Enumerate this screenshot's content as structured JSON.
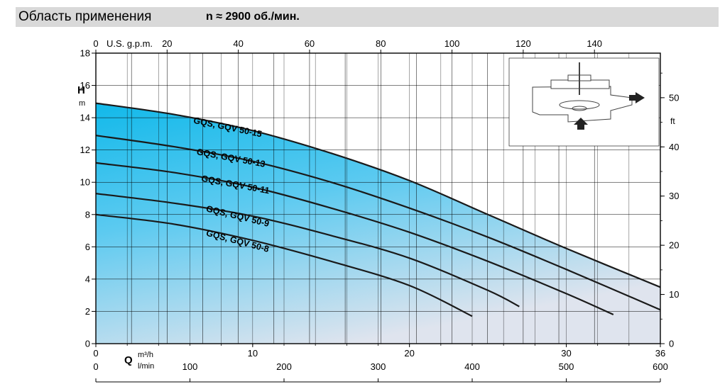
{
  "header": {
    "title": "Область применения",
    "subtitle": "n ≈ 2900 об./мин."
  },
  "chart_data": {
    "type": "area",
    "y_axis_left": {
      "label": "H",
      "unit": "m",
      "ticks": [
        0,
        2,
        4,
        6,
        8,
        10,
        12,
        14,
        16,
        18
      ],
      "range": [
        0,
        18
      ]
    },
    "y_axis_right": {
      "unit": "ft",
      "ticks": [
        0,
        10,
        20,
        30,
        40,
        50
      ]
    },
    "x_axis_top": {
      "label": "U.S. g.p.m.",
      "ticks": [
        0,
        20,
        40,
        60,
        80,
        100,
        120,
        140
      ]
    },
    "x_axis_m3h": {
      "label": "Q",
      "unit": "m³/h",
      "ticks": [
        0,
        10,
        20,
        30,
        36
      ],
      "range": [
        0,
        36
      ]
    },
    "x_axis_lmin": {
      "unit": "l/min",
      "ticks": [
        0,
        100,
        200,
        300,
        400,
        500,
        600
      ]
    },
    "inset": {
      "icon": "pump-flow-diagram-icon"
    },
    "colors": {
      "fill_dark": "#12b9ea",
      "fill_light": "#dcecf6",
      "line": "#1a1a1a",
      "header_bg": "#d9d9d9"
    },
    "series": [
      {
        "name": "GQS, GQV 50-15",
        "x": [
          0,
          5,
          10,
          15,
          20,
          25,
          30,
          36
        ],
        "y": [
          14.9,
          14.2,
          13.2,
          11.8,
          10.1,
          8.0,
          5.9,
          3.5
        ]
      },
      {
        "name": "GQS, GQV 50-13",
        "x": [
          0,
          5,
          10,
          15,
          20,
          25,
          30,
          36
        ],
        "y": [
          12.9,
          12.2,
          11.3,
          10.0,
          8.4,
          6.6,
          4.6,
          2.1
        ]
      },
      {
        "name": "GQS, GQV 50-11",
        "x": [
          0,
          5,
          10,
          15,
          20,
          25,
          30,
          33
        ],
        "y": [
          11.2,
          10.6,
          9.7,
          8.4,
          6.9,
          5.1,
          3.1,
          1.8
        ]
      },
      {
        "name": "GQS, GQV 50-9",
        "x": [
          0,
          5,
          10,
          15,
          20,
          25,
          27
        ],
        "y": [
          9.3,
          8.7,
          7.9,
          6.7,
          5.3,
          3.3,
          2.3
        ]
      },
      {
        "name": "GQS, GQV 50-8",
        "x": [
          0,
          5,
          10,
          15,
          20,
          24
        ],
        "y": [
          8.0,
          7.4,
          6.4,
          5.1,
          3.6,
          1.7
        ]
      }
    ]
  }
}
